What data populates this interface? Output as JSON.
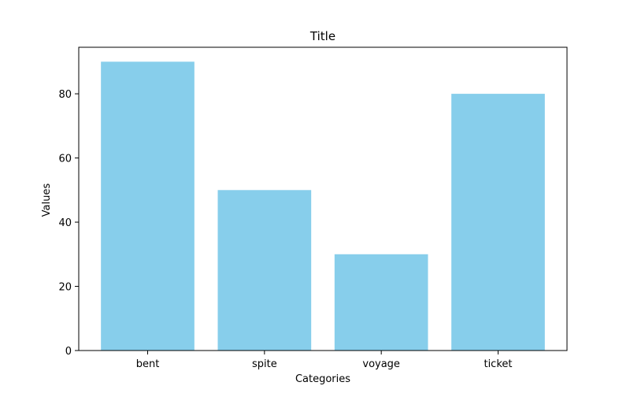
{
  "chart_data": {
    "type": "bar",
    "title": "Title",
    "xlabel": "Categories",
    "ylabel": "Values",
    "categories": [
      "bent",
      "spite",
      "voyage",
      "ticket"
    ],
    "values": [
      90,
      50,
      30,
      80
    ],
    "ylim": [
      0,
      94.5
    ],
    "yticks": [
      0,
      20,
      40,
      60,
      80
    ],
    "grid": false,
    "bar_color": "#87ceeb"
  }
}
